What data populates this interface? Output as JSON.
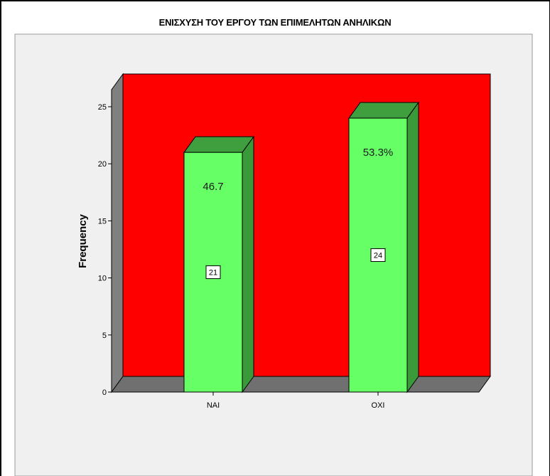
{
  "chart_data": {
    "type": "bar",
    "title": "ΕΝΙΣΧΥΣΗ ΤΟΥ ΕΡΓΟΥ ΤΩΝ ΕΠΙΜΕΛΗΤΩΝ ΑΝΗΛΙΚΩΝ",
    "xlabel": "",
    "ylabel": "Frequency",
    "categories": [
      "ΝΑΙ",
      "ΟΧΙ"
    ],
    "values": [
      21,
      24
    ],
    "count_labels": [
      "21",
      "24"
    ],
    "percent_labels": [
      "46.7",
      "53.3%"
    ],
    "ylim": [
      0,
      25
    ],
    "yticks": [
      0,
      5,
      10,
      15,
      20,
      25
    ],
    "grid": false,
    "style": "3d",
    "colors": {
      "plot_area_back_wall": "#ff0000",
      "plot_area_side_wall": "#808080",
      "plot_area_floor": "#707070",
      "chart_background": "#f0f0f0",
      "bar_front": "#66ff66",
      "bar_side": "#3a9a3a",
      "bar_top": "#3f9f3f"
    }
  }
}
